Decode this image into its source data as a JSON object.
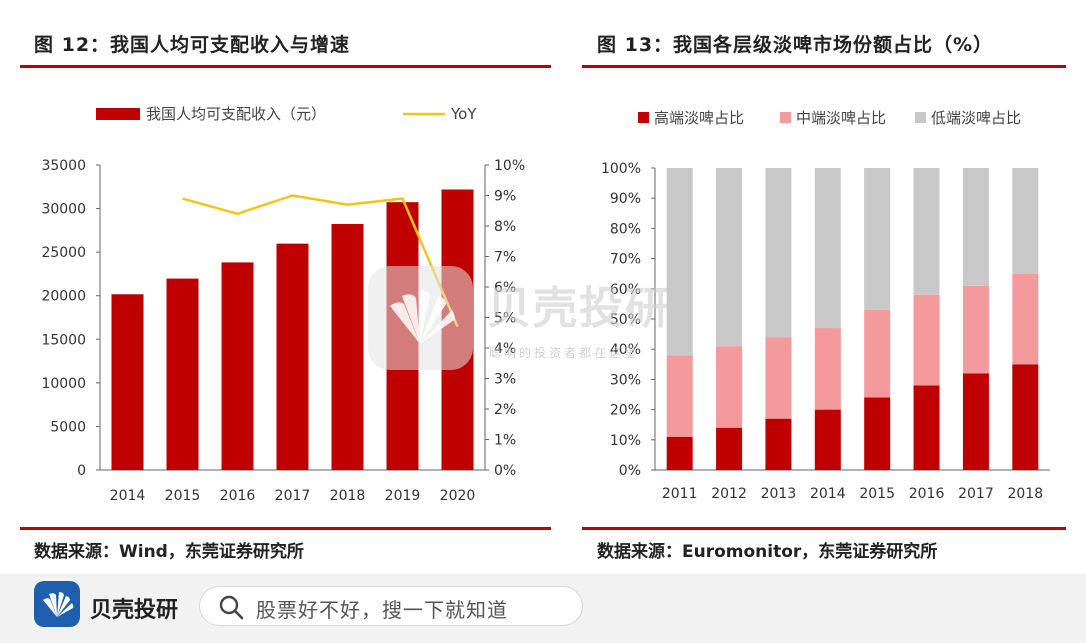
{
  "left_chart": {
    "title": "图 12：我国人均可支配收入与增速",
    "source": "数据来源：Wind，东莞证券研究所"
  },
  "right_chart": {
    "title": "图 13：我国各层级淡啤市场份额占比（%）",
    "source": "数据来源：Euromonitor，东莞证券研究所"
  },
  "chart_data": [
    {
      "type": "bar",
      "categories": [
        "2014",
        "2015",
        "2016",
        "2017",
        "2018",
        "2019",
        "2020"
      ],
      "series": [
        {
          "name": "我国人均可支配收入（元）",
          "type": "bar",
          "axis": "left",
          "color": "#c00000",
          "values": [
            20167,
            21966,
            23821,
            25974,
            28228,
            30733,
            32189
          ]
        },
        {
          "name": "YoY",
          "type": "line",
          "axis": "right",
          "color": "#f0c419",
          "values": [
            null,
            8.9,
            8.4,
            9.0,
            8.7,
            8.9,
            4.7
          ]
        }
      ],
      "ylim": [
        0,
        35000
      ],
      "yticks": [
        "0",
        "5000",
        "10000",
        "15000",
        "20000",
        "25000",
        "30000",
        "35000"
      ],
      "y2lim": [
        0,
        10
      ],
      "y2ticks": [
        "0%",
        "1%",
        "2%",
        "3%",
        "4%",
        "5%",
        "6%",
        "7%",
        "8%",
        "9%",
        "10%"
      ],
      "legend_position": "top"
    },
    {
      "type": "bar",
      "stacked": true,
      "categories": [
        "2011",
        "2012",
        "2013",
        "2014",
        "2015",
        "2016",
        "2017",
        "2018"
      ],
      "series": [
        {
          "name": "高端淡啤占比",
          "color": "#c00000",
          "values": [
            11,
            14,
            17,
            20,
            24,
            28,
            32,
            35
          ]
        },
        {
          "name": "中端淡啤占比",
          "color": "#f4999c",
          "values": [
            27,
            27,
            27,
            27,
            29,
            30,
            29,
            30
          ]
        },
        {
          "name": "低端淡啤占比",
          "color": "#c8c8c8",
          "values": [
            62,
            59,
            56,
            53,
            47,
            42,
            39,
            35
          ]
        }
      ],
      "ylim": [
        0,
        100
      ],
      "yticks": [
        "0%",
        "10%",
        "20%",
        "30%",
        "40%",
        "50%",
        "60%",
        "70%",
        "80%",
        "90%",
        "100%"
      ],
      "legend_position": "top"
    }
  ],
  "watermark": {
    "brand": "贝壳投研",
    "slogan": "聪明的投资者都在这里"
  },
  "footer": {
    "brand": "贝壳投研",
    "search_placeholder": "股票好不好，搜一下就知道"
  },
  "colors": {
    "accent": "#c0000a",
    "brand_blue": "#1e5fb0"
  },
  "icons": {
    "logo": "shell-logo-icon",
    "search": "search-icon"
  }
}
